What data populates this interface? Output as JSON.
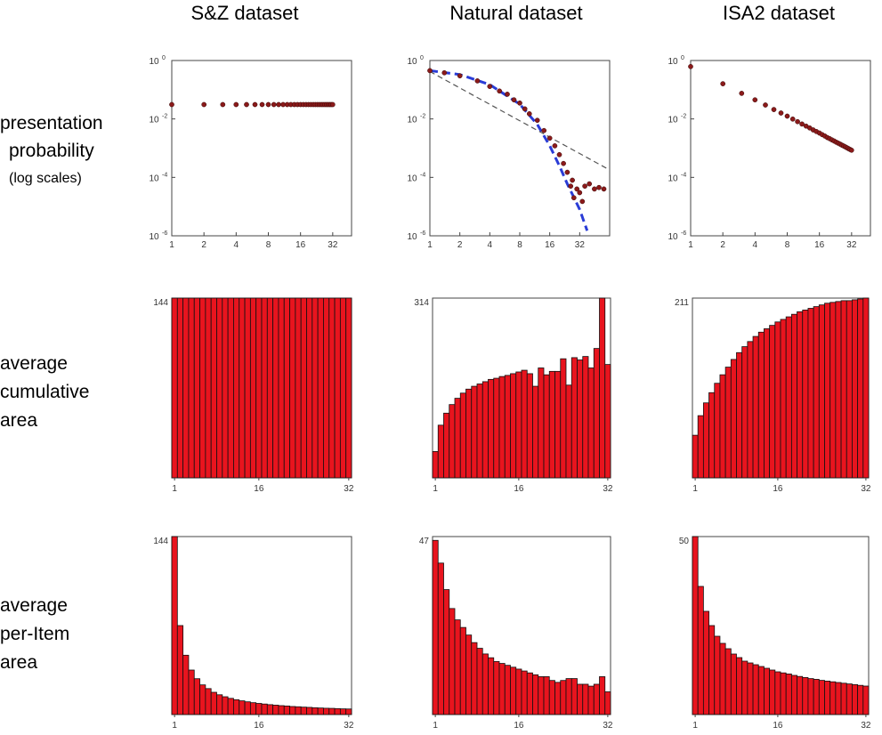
{
  "columns": [
    "S&Z dataset",
    "Natural dataset",
    "ISA2 dataset"
  ],
  "row_labels": [
    {
      "lines": [
        "presentation",
        "probability",
        "(log scales)"
      ]
    },
    {
      "lines": [
        "average",
        "cumulative",
        "area"
      ]
    },
    {
      "lines": [
        "average",
        "per-Item",
        "area"
      ]
    }
  ],
  "colors": {
    "bar_fill": "#e8141e",
    "bar_edge": "#111111",
    "dot": "#8b1a1a",
    "fit_blue": "#2a3cd6",
    "fit_gray": "#555555"
  },
  "chart_data": [
    {
      "id": "prob-sz",
      "type": "scatter",
      "xscale": "log2",
      "yscale": "log",
      "xlim": [
        1,
        48
      ],
      "ylim": [
        1e-06,
        1
      ],
      "xticks": [
        "1",
        "2",
        "4",
        "8",
        "16",
        "32"
      ],
      "yticks": [
        {
          "base": "10",
          "exp": "0"
        },
        {
          "base": "10",
          "exp": "-2"
        },
        {
          "base": "10",
          "exp": "-4"
        },
        {
          "base": "10",
          "exp": "-6"
        }
      ],
      "series": [
        {
          "points": [
            [
              1,
              0.031
            ],
            [
              2,
              0.031
            ],
            [
              3,
              0.031
            ],
            [
              4,
              0.031
            ],
            [
              5,
              0.031
            ],
            [
              6,
              0.031
            ],
            [
              7,
              0.031
            ],
            [
              8,
              0.031
            ],
            [
              9,
              0.031
            ],
            [
              10,
              0.031
            ],
            [
              11,
              0.031
            ],
            [
              12,
              0.031
            ],
            [
              13,
              0.031
            ],
            [
              14,
              0.031
            ],
            [
              15,
              0.031
            ],
            [
              16,
              0.031
            ],
            [
              17,
              0.031
            ],
            [
              18,
              0.031
            ],
            [
              19,
              0.031
            ],
            [
              20,
              0.031
            ],
            [
              21,
              0.031
            ],
            [
              22,
              0.031
            ],
            [
              23,
              0.031
            ],
            [
              24,
              0.031
            ],
            [
              25,
              0.031
            ],
            [
              26,
              0.031
            ],
            [
              27,
              0.031
            ],
            [
              28,
              0.031
            ],
            [
              29,
              0.031
            ],
            [
              30,
              0.031
            ],
            [
              31,
              0.031
            ],
            [
              32,
              0.031
            ]
          ]
        }
      ]
    },
    {
      "id": "prob-natural",
      "type": "scatter",
      "xscale": "log2",
      "yscale": "log",
      "xlim": [
        1,
        64
      ],
      "ylim": [
        1e-06,
        1
      ],
      "xticks": [
        "1",
        "2",
        "4",
        "8",
        "16",
        "32"
      ],
      "yticks": [
        {
          "base": "10",
          "exp": "0"
        },
        {
          "base": "10",
          "exp": "-2"
        },
        {
          "base": "10",
          "exp": "-4"
        },
        {
          "base": "10",
          "exp": "-6"
        }
      ],
      "series": [
        {
          "points": [
            [
              1,
              0.45
            ],
            [
              1.4,
              0.38
            ],
            [
              2,
              0.3
            ],
            [
              3,
              0.2
            ],
            [
              4,
              0.13
            ],
            [
              5,
              0.09
            ],
            [
              6,
              0.07
            ],
            [
              7,
              0.045
            ],
            [
              8,
              0.035
            ],
            [
              9,
              0.022
            ],
            [
              10,
              0.015
            ],
            [
              12,
              0.009
            ],
            [
              14,
              0.004
            ],
            [
              16,
              0.0022
            ],
            [
              18,
              0.0012
            ],
            [
              20,
              0.0006
            ],
            [
              22,
              0.0003
            ],
            [
              24,
              0.00015
            ],
            [
              26,
              5e-05
            ],
            [
              27,
              8e-05
            ],
            [
              28,
              2e-05
            ],
            [
              30,
              4e-05
            ],
            [
              32,
              3e-05
            ],
            [
              34,
              1.5e-05
            ],
            [
              36,
              5e-05
            ],
            [
              40,
              6e-05
            ],
            [
              45,
              4e-05
            ],
            [
              50,
              4.5e-05
            ],
            [
              56,
              4e-05
            ]
          ]
        }
      ],
      "fits": [
        {
          "style": "dashed-blue",
          "points": [
            [
              1,
              0.45
            ],
            [
              2,
              0.33
            ],
            [
              4,
              0.15
            ],
            [
              8,
              0.032
            ],
            [
              12,
              0.0065
            ],
            [
              16,
              0.0012
            ],
            [
              20,
              0.00025
            ],
            [
              24,
              6e-05
            ],
            [
              32,
              8e-06
            ],
            [
              38,
              1.5e-06
            ]
          ]
        },
        {
          "style": "dashed-gray",
          "points": [
            [
              1,
              0.42
            ],
            [
              64,
              0.00018
            ]
          ]
        }
      ]
    },
    {
      "id": "prob-isa2",
      "type": "scatter",
      "xscale": "log2",
      "yscale": "log",
      "xlim": [
        1,
        48
      ],
      "ylim": [
        1e-06,
        1
      ],
      "xticks": [
        "1",
        "2",
        "4",
        "8",
        "16",
        "32"
      ],
      "yticks": [
        {
          "base": "10",
          "exp": "0"
        },
        {
          "base": "10",
          "exp": "-2"
        },
        {
          "base": "10",
          "exp": "-4"
        },
        {
          "base": "10",
          "exp": "-6"
        }
      ],
      "series": [
        {
          "points": [
            [
              1,
              0.62
            ],
            [
              2,
              0.16
            ],
            [
              3,
              0.075
            ],
            [
              4,
              0.045
            ],
            [
              5,
              0.03
            ],
            [
              6,
              0.021
            ],
            [
              7,
              0.016
            ],
            [
              8,
              0.0125
            ],
            [
              9,
              0.0099
            ],
            [
              10,
              0.0081
            ],
            [
              11,
              0.0067
            ],
            [
              12,
              0.0057
            ],
            [
              13,
              0.0049
            ],
            [
              14,
              0.0042
            ],
            [
              15,
              0.0037
            ],
            [
              16,
              0.0033
            ],
            [
              17,
              0.0029
            ],
            [
              18,
              0.0026
            ],
            [
              19,
              0.0023
            ],
            [
              20,
              0.0021
            ],
            [
              21,
              0.0019
            ],
            [
              22,
              0.00175
            ],
            [
              23,
              0.0016
            ],
            [
              24,
              0.00148
            ],
            [
              25,
              0.00137
            ],
            [
              26,
              0.00127
            ],
            [
              27,
              0.00118
            ],
            [
              28,
              0.0011
            ],
            [
              29,
              0.00103
            ],
            [
              30,
              0.00096
            ],
            [
              31,
              0.0009
            ],
            [
              32,
              0.00085
            ]
          ]
        }
      ]
    },
    {
      "id": "cum-sz",
      "type": "bar",
      "ylim": [
        0,
        144
      ],
      "ytick_label": "144",
      "xticks": [
        {
          "at": 1,
          "label": "1"
        },
        {
          "at": 16,
          "label": "16"
        },
        {
          "at": 32,
          "label": "32"
        }
      ],
      "values": [
        144,
        144,
        144,
        144,
        144,
        144,
        144,
        144,
        144,
        144,
        144,
        144,
        144,
        144,
        144,
        144,
        144,
        144,
        144,
        144,
        144,
        144,
        144,
        144,
        144,
        144,
        144,
        144,
        144,
        144,
        144,
        144
      ]
    },
    {
      "id": "cum-natural",
      "type": "bar",
      "ylim": [
        0,
        314
      ],
      "ytick_label": "314",
      "xticks": [
        {
          "at": 1,
          "label": "1"
        },
        {
          "at": 16,
          "label": "16"
        },
        {
          "at": 32,
          "label": "32"
        }
      ],
      "values": [
        46,
        92,
        113,
        128,
        139,
        148,
        155,
        160,
        164,
        168,
        172,
        174,
        177,
        179,
        182,
        185,
        188,
        182,
        160,
        192,
        180,
        186,
        186,
        208,
        162,
        210,
        206,
        212,
        192,
        226,
        314,
        198
      ]
    },
    {
      "id": "cum-isa2",
      "type": "bar",
      "ylim": [
        0,
        211
      ],
      "ytick_label": "211",
      "xticks": [
        {
          "at": 1,
          "label": "1"
        },
        {
          "at": 16,
          "label": "16"
        },
        {
          "at": 32,
          "label": "32"
        }
      ],
      "values": [
        50,
        73,
        88,
        100,
        111,
        121,
        130,
        139,
        147,
        154,
        160,
        166,
        171,
        175,
        179,
        183,
        186,
        189,
        192,
        195,
        197,
        199,
        201,
        203,
        205,
        206,
        207,
        208,
        208,
        209,
        210,
        211
      ]
    },
    {
      "id": "item-sz",
      "type": "bar",
      "ylim": [
        0,
        144
      ],
      "ytick_label": "144",
      "xticks": [
        {
          "at": 1,
          "label": "1"
        },
        {
          "at": 16,
          "label": "16"
        },
        {
          "at": 32,
          "label": "32"
        }
      ],
      "values": [
        144,
        72,
        48,
        36,
        29,
        24,
        21,
        18,
        16,
        14.4,
        13.1,
        12,
        11.1,
        10.3,
        9.6,
        9,
        8.5,
        8,
        7.6,
        7.2,
        6.9,
        6.5,
        6.3,
        6,
        5.8,
        5.5,
        5.3,
        5.1,
        5,
        4.8,
        4.6,
        4.5
      ]
    },
    {
      "id": "item-natural",
      "type": "bar",
      "ylim": [
        0,
        47
      ],
      "ytick_label": "47",
      "xticks": [
        {
          "at": 1,
          "label": "1"
        },
        {
          "at": 16,
          "label": "16"
        },
        {
          "at": 32,
          "label": "32"
        }
      ],
      "values": [
        46,
        40,
        33,
        28,
        25,
        23,
        21,
        19,
        17.5,
        16,
        15,
        14,
        13.5,
        13,
        12.5,
        12,
        11.5,
        11,
        10.5,
        10,
        10,
        9,
        8.5,
        9,
        9.5,
        9.5,
        8,
        8,
        7.5,
        8,
        10,
        6
      ]
    },
    {
      "id": "item-isa2",
      "type": "bar",
      "ylim": [
        0,
        50
      ],
      "ytick_label": "50",
      "xticks": [
        {
          "at": 1,
          "label": "1"
        },
        {
          "at": 16,
          "label": "16"
        },
        {
          "at": 32,
          "label": "32"
        }
      ],
      "values": [
        50,
        36,
        29,
        25,
        22,
        20,
        18.5,
        17,
        16,
        15,
        14.5,
        14,
        13.5,
        13,
        12.5,
        12,
        11.7,
        11.4,
        11,
        10.7,
        10.4,
        10.1,
        9.9,
        9.6,
        9.4,
        9.2,
        9,
        8.8,
        8.6,
        8.4,
        8.2,
        8
      ]
    }
  ]
}
